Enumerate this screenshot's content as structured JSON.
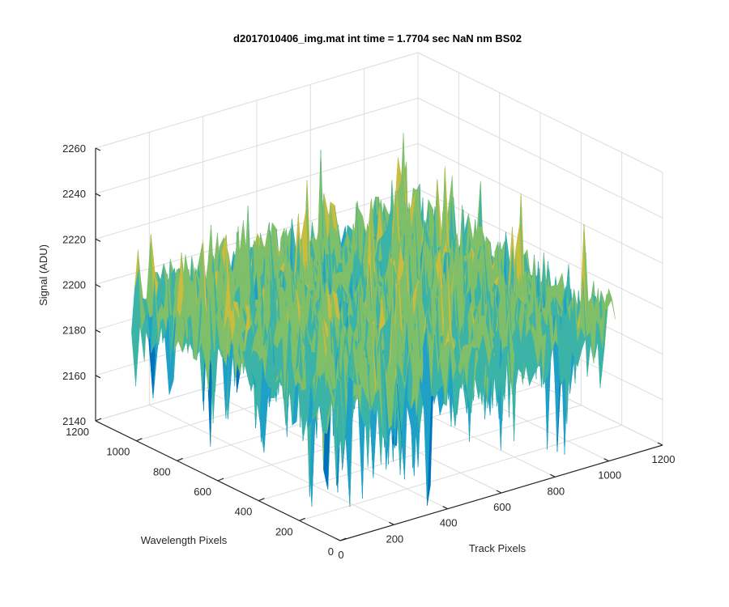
{
  "chart_data": {
    "type": "surface",
    "title": "d2017010406_img.mat int time = 1.7704 sec  NaN nm BS02",
    "xlabel": "Track Pixels",
    "ylabel": "Wavelength Pixels",
    "zlabel": "Signal (ADU)",
    "xlim": [
      0,
      1200
    ],
    "ylim": [
      0,
      1200
    ],
    "zlim": [
      2140,
      2260
    ],
    "x_ticks": [
      "0",
      "200",
      "400",
      "600",
      "800",
      "1000",
      "1200"
    ],
    "y_ticks": [
      "0",
      "200",
      "400",
      "600",
      "800",
      "1000",
      "1200"
    ],
    "z_ticks": [
      "2140",
      "2160",
      "2180",
      "2200",
      "2220",
      "2240",
      "2260"
    ],
    "surface": {
      "x_range": [
        0,
        1024
      ],
      "y_range": [
        0,
        1024
      ],
      "typical_value": 2200,
      "min_value": 2143,
      "max_value": 2252,
      "colormap": [
        "#0072bd",
        "#1fa1c7",
        "#3bb3a7",
        "#7fbf6a",
        "#c8bd3f",
        "#f5b83a"
      ]
    },
    "grid": true
  }
}
